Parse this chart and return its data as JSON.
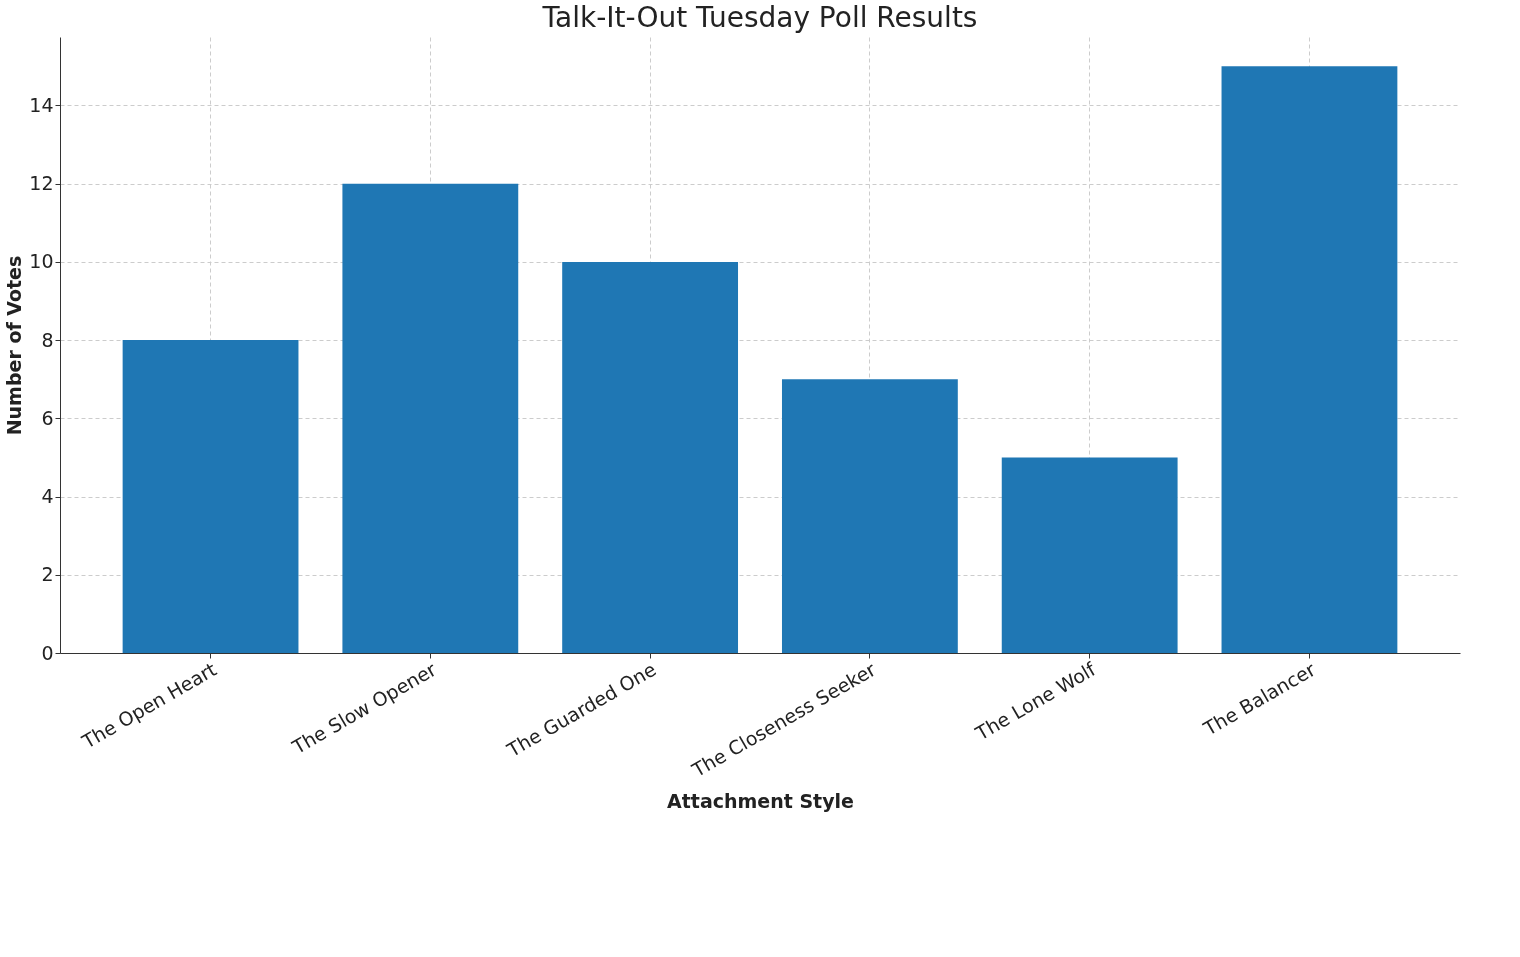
{
  "chart_data": {
    "type": "bar",
    "title": "Talk-It-Out Tuesday Poll Results",
    "xlabel": "Attachment Style",
    "ylabel": "Number of Votes",
    "categories": [
      "The Open Heart",
      "The Slow Opener",
      "The Guarded One",
      "The Closeness Seeker",
      "The Lone Wolf",
      "The Balancer"
    ],
    "values": [
      8,
      12,
      10,
      7,
      5,
      15
    ],
    "color": "#1f77b4",
    "ylim": [
      0,
      15.75
    ],
    "yticks": [
      0,
      2,
      4,
      6,
      8,
      10,
      12,
      14
    ],
    "grid": true,
    "line_style": "dashed"
  }
}
